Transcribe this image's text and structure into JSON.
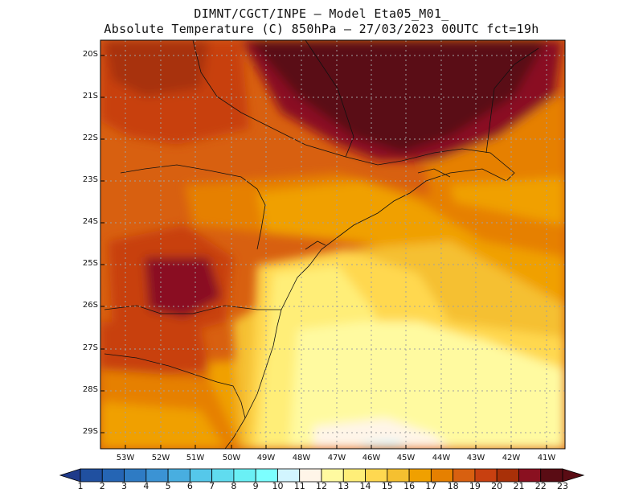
{
  "title_line1": "DIMNT/CGCT/INPE –  Model Eta05_M01_",
  "title_line2": "Absolute Temperature (C) 850hPa –  27/03/2023 00UTC fct=19h",
  "lat_labels": [
    "20S",
    "21S",
    "22S",
    "23S",
    "24S",
    "25S",
    "26S",
    "27S",
    "28S",
    "29S"
  ],
  "lon_labels": [
    "53W",
    "52W",
    "51W",
    "50W",
    "49W",
    "48W",
    "47W",
    "46W",
    "45W",
    "44W",
    "43W",
    "42W",
    "41W"
  ],
  "colorbar": {
    "labels": [
      "1",
      "2",
      "3",
      "4",
      "5",
      "6",
      "7",
      "8",
      "9",
      "10",
      "11",
      "12",
      "13",
      "14",
      "15",
      "16",
      "17",
      "18",
      "19",
      "20",
      "21",
      "22",
      "23"
    ],
    "colors": [
      "#1f3a8a",
      "#2050a0",
      "#2565b4",
      "#2e7bc4",
      "#3b93d4",
      "#48aee0",
      "#55c8ea",
      "#60dcef",
      "#6af0f5",
      "#7cffff",
      "#d2f5ff",
      "#fff5e8",
      "#fffaa0",
      "#ffee78",
      "#ffd850",
      "#f5c030",
      "#f0a000",
      "#e68000",
      "#d86010",
      "#c84010",
      "#a83008",
      "#8a1020",
      "#5a0c14"
    ]
  },
  "map_fill_colors": {
    "c17": "#f0a000",
    "c18": "#e68000",
    "c19": "#d86010",
    "c20": "#c84010",
    "c21": "#a83008",
    "c22": "#8a1020",
    "c23": "#5a0c14",
    "c16": "#f5c030",
    "c15": "#ffd850",
    "c14": "#ffee78",
    "c13": "#fffaa0",
    "c12": "#fff5e8",
    "c11": "#d2f5ff"
  }
}
